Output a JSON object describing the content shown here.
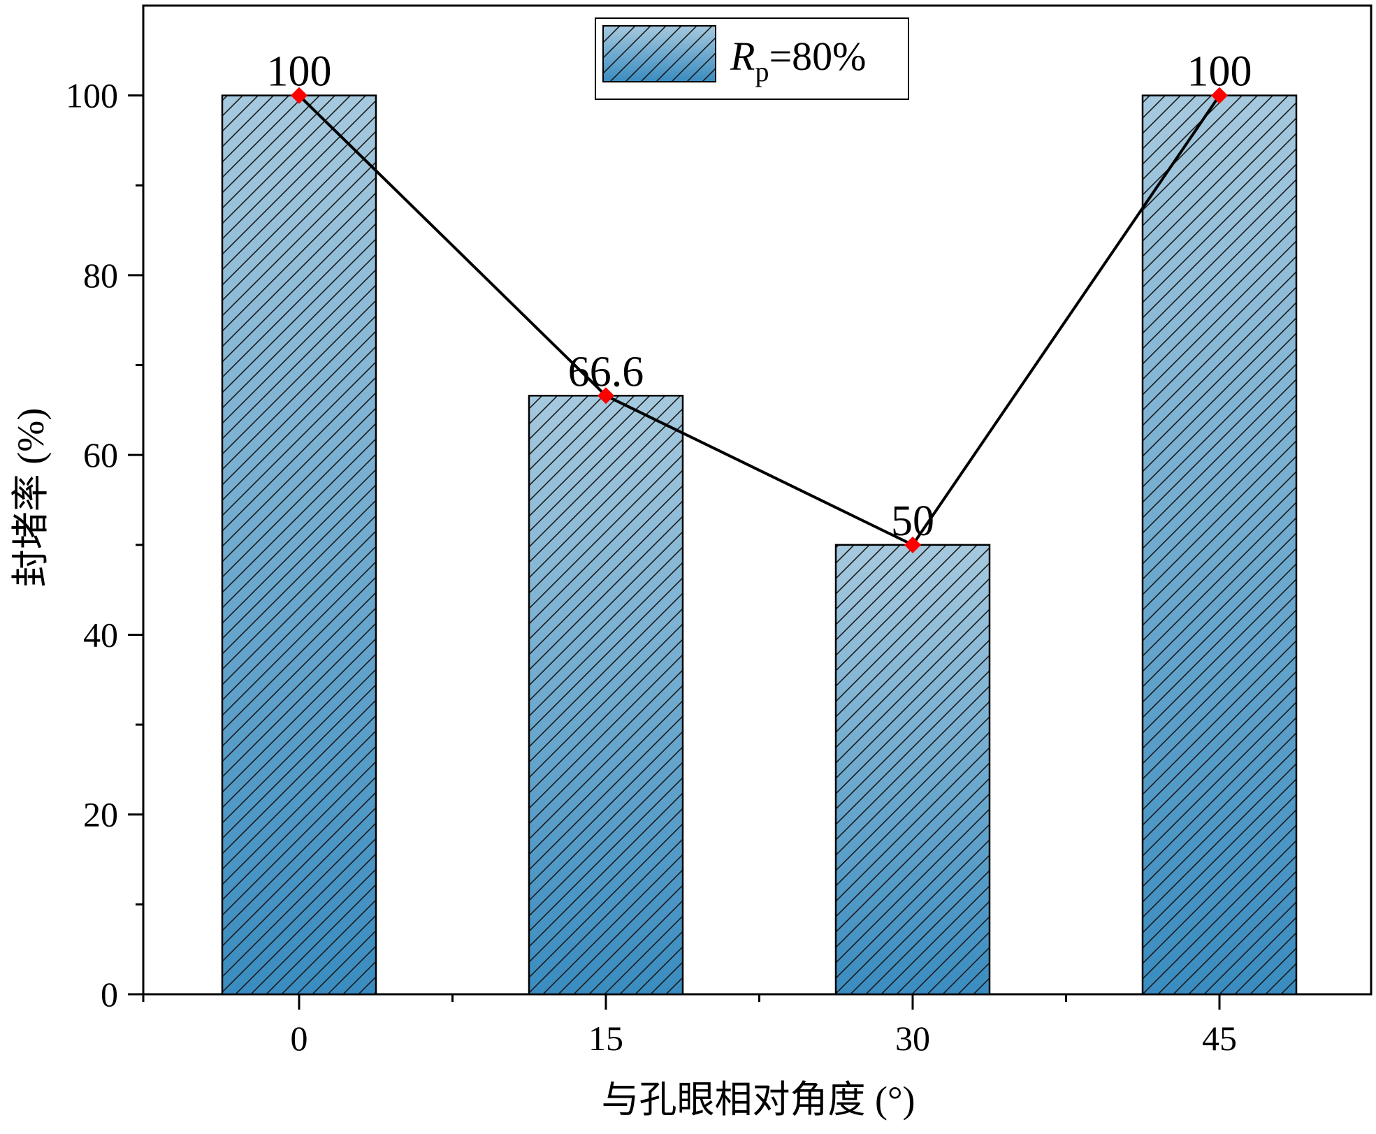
{
  "chart_data": {
    "type": "bar",
    "categories": [
      "0",
      "15",
      "30",
      "45"
    ],
    "series": [
      {
        "name": "R_p=80%",
        "values": [
          100,
          66.6,
          50,
          100
        ]
      }
    ],
    "overlay_line": {
      "values": [
        100,
        66.6,
        50,
        100
      ],
      "marker": "diamond",
      "marker_color": "#ff0000",
      "line_color": "#000000"
    },
    "data_labels": [
      "100",
      "66.6",
      "50",
      "100"
    ],
    "xlabel": "与孔眼相对角度 (°)",
    "ylabel": "封堵率 (%)",
    "ylim": [
      0,
      110
    ],
    "yticks": [
      "0",
      "20",
      "40",
      "60",
      "80",
      "100"
    ],
    "ytick_values": [
      0,
      20,
      40,
      60,
      80,
      100
    ],
    "minor_yticks": [
      10,
      30,
      50,
      70,
      90
    ],
    "grid": false,
    "legend": {
      "position": "top-center",
      "symbol": "R",
      "subscript": "p",
      "suffix": "=80%"
    },
    "colors": {
      "bar_top": "#a6c9de",
      "bar_bottom": "#3a8cc0",
      "hatch": "#1a1a1a",
      "marker": "#ff0000"
    }
  }
}
